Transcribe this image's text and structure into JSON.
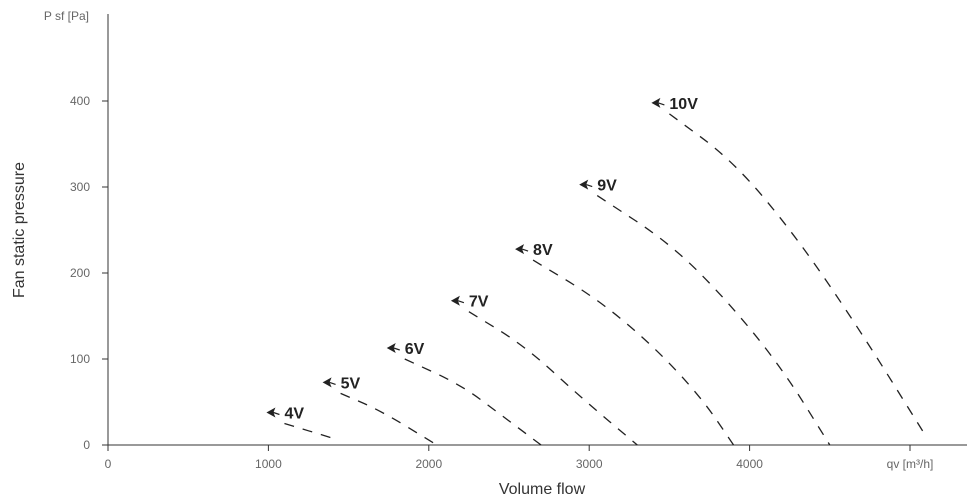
{
  "chart_data": {
    "type": "line",
    "xlabel": "Volume flow",
    "ylabel": "Fan static pressure",
    "x_unit_label": "qv [m³/h]",
    "y_unit_label": "P sf [Pa]",
    "xlim": [
      0,
      5300
    ],
    "ylim": [
      0,
      500
    ],
    "x_ticks": [
      0,
      1000,
      2000,
      3000,
      4000
    ],
    "y_ticks": [
      0,
      100,
      200,
      300,
      400
    ],
    "grid": false,
    "line_style": "dashed",
    "colors": {
      "line": "#222222",
      "axis": "#333333",
      "tick_text": "#666666"
    },
    "series": [
      {
        "name": "4V",
        "points": [
          [
            1100,
            25
          ],
          [
            1400,
            8
          ]
        ]
      },
      {
        "name": "5V",
        "points": [
          [
            1450,
            60
          ],
          [
            1700,
            40
          ],
          [
            2050,
            0
          ]
        ]
      },
      {
        "name": "6V",
        "points": [
          [
            1850,
            100
          ],
          [
            2200,
            70
          ],
          [
            2450,
            35
          ],
          [
            2700,
            0
          ]
        ]
      },
      {
        "name": "7V",
        "points": [
          [
            2250,
            155
          ],
          [
            2600,
            115
          ],
          [
            2950,
            55
          ],
          [
            3300,
            0
          ]
        ]
      },
      {
        "name": "8V",
        "points": [
          [
            2650,
            215
          ],
          [
            3050,
            170
          ],
          [
            3400,
            115
          ],
          [
            3700,
            55
          ],
          [
            3900,
            0
          ]
        ]
      },
      {
        "name": "9V",
        "points": [
          [
            3050,
            290
          ],
          [
            3500,
            235
          ],
          [
            3850,
            170
          ],
          [
            4200,
            90
          ],
          [
            4500,
            0
          ]
        ]
      },
      {
        "name": "10V",
        "points": [
          [
            3500,
            385
          ],
          [
            3900,
            330
          ],
          [
            4300,
            240
          ],
          [
            4700,
            130
          ],
          [
            5100,
            10
          ]
        ]
      }
    ]
  }
}
